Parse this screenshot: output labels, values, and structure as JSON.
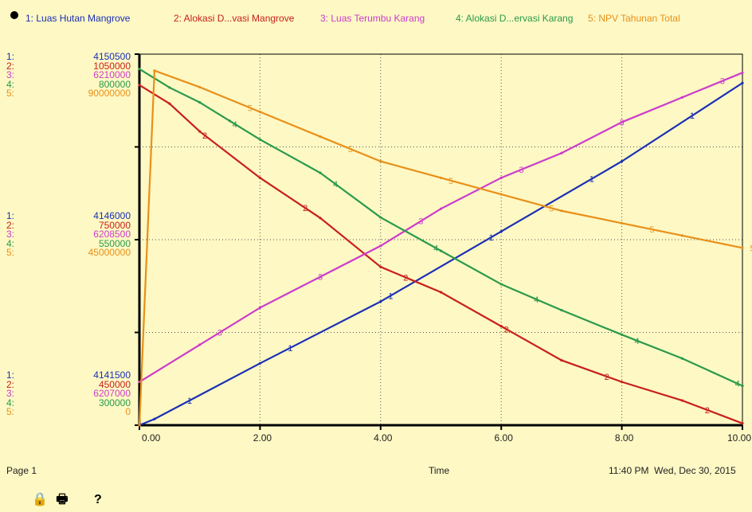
{
  "chart_data": {
    "type": "line",
    "x_label": "Time",
    "xlim": [
      0,
      10
    ],
    "x_ticks": [
      "0.00",
      "2.00",
      "4.00",
      "6.00",
      "8.00",
      "10.00"
    ],
    "grid": true,
    "legend_position": "top",
    "series": [
      {
        "num": "1",
        "name": "1: Luas Hutan Mangrove",
        "color": "#1a2fb5",
        "scale_labels": [
          "4150500",
          "4146000",
          "4141500"
        ],
        "ylim": [
          4141500,
          4150500
        ],
        "x": [
          0,
          0.25,
          2,
          4,
          6,
          8,
          10
        ],
        "y": [
          4141500,
          4141650,
          4143000,
          4144500,
          4146200,
          4147900,
          4149800
        ]
      },
      {
        "num": "2",
        "name": "2: Alokasi D...vasi Mangrove",
        "color": "#c8201c",
        "scale_labels": [
          "1050000",
          "750000",
          "450000"
        ],
        "ylim": [
          450000,
          1050000
        ],
        "x": [
          0,
          0.5,
          1,
          2,
          3,
          4,
          5,
          6,
          7,
          8,
          9,
          10
        ],
        "y": [
          1000000,
          970000,
          925000,
          850000,
          785000,
          706000,
          665000,
          610000,
          555000,
          520000,
          490000,
          453000
        ]
      },
      {
        "num": "3",
        "name": "3: Luas Terumbu Karang",
        "color": "#cc3ccc",
        "scale_labels": [
          "6210000",
          "6208500",
          "6207000"
        ],
        "ylim": [
          6207000,
          6210000
        ],
        "x": [
          0,
          1,
          2,
          3,
          4,
          5,
          6,
          7,
          8,
          9,
          10
        ],
        "y": [
          6207350,
          6207650,
          6207950,
          6208200,
          6208450,
          6208750,
          6209000,
          6209200,
          6209450,
          6209650,
          6209850
        ]
      },
      {
        "num": "4",
        "name": "4: Alokasi D...ervasi Karang",
        "color": "#2a9a4a",
        "scale_labels": [
          "800000",
          "550000",
          "300000"
        ],
        "ylim": [
          300000,
          800000
        ],
        "x": [
          0,
          0.5,
          1,
          1.5,
          2,
          3,
          4,
          5,
          6,
          7,
          8,
          9,
          10
        ],
        "y": [
          780000,
          755000,
          735000,
          710000,
          685000,
          640000,
          580000,
          535000,
          490000,
          455000,
          422000,
          390000,
          353000
        ]
      },
      {
        "num": "5",
        "name": "5: NPV Tahunan Total",
        "color": "#e8901a",
        "scale_labels": [
          "90000000",
          "45000000",
          "0"
        ],
        "ylim": [
          0,
          90000000
        ],
        "x": [
          0,
          0.25,
          1,
          2,
          3,
          4,
          5,
          6,
          7,
          8,
          9,
          10
        ],
        "y": [
          0,
          86000000,
          82000000,
          76000000,
          70000000,
          64000000,
          60000000,
          56000000,
          52000000,
          49000000,
          46000000,
          43000000
        ]
      }
    ]
  },
  "footer": {
    "page": "Page 1",
    "xlabel": "Time",
    "timestamp": "11:40 PM  Wed, Dec 30, 2015"
  },
  "toolbar": {
    "lock": "🔒",
    "print": "🖶",
    "help": "?"
  }
}
